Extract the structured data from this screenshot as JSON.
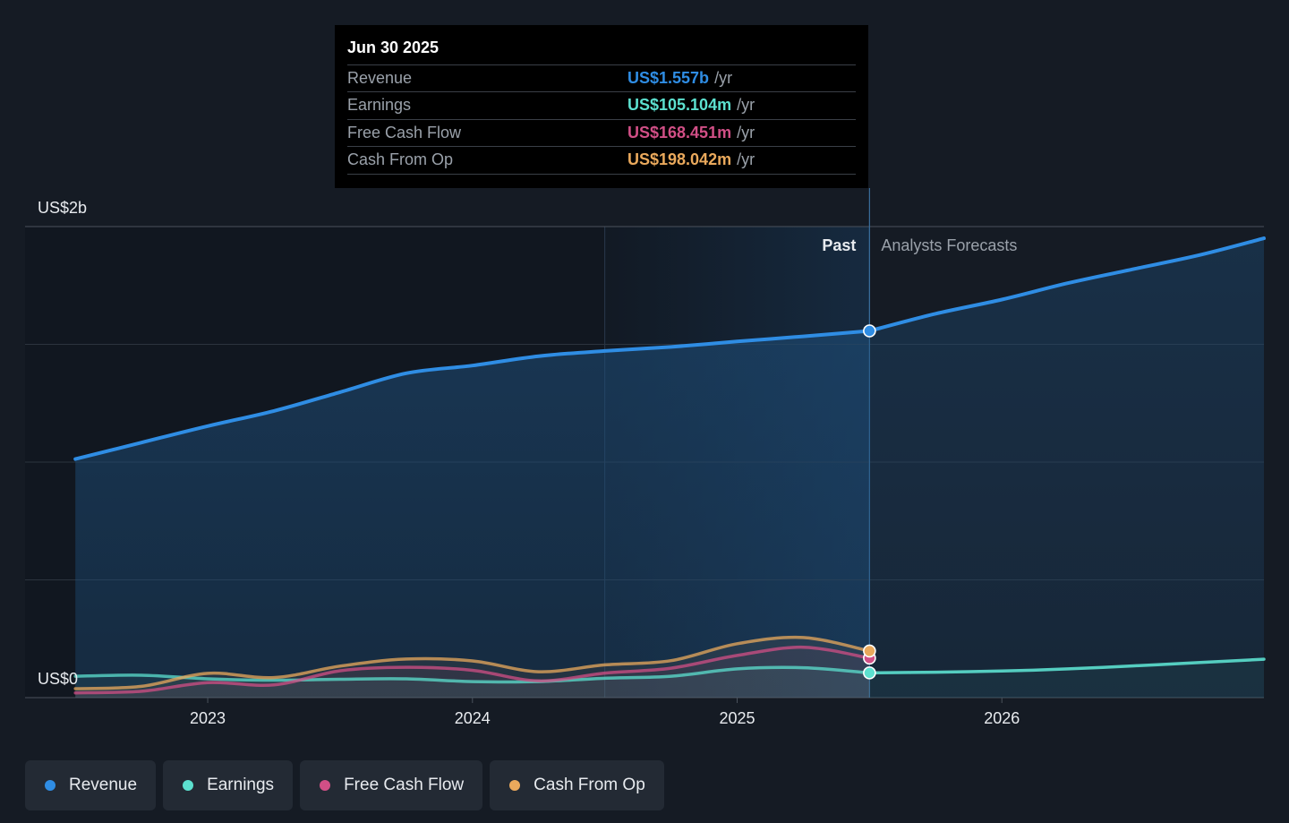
{
  "tooltip": {
    "date": "Jun 30 2025",
    "rows": [
      {
        "label": "Revenue",
        "value": "US$1.557b",
        "unit": "/yr",
        "color": "#2f8de4"
      },
      {
        "label": "Earnings",
        "value": "US$105.104m",
        "unit": "/yr",
        "color": "#5ce0cf"
      },
      {
        "label": "Free Cash Flow",
        "value": "US$168.451m",
        "unit": "/yr",
        "color": "#d14f86"
      },
      {
        "label": "Cash From Op",
        "value": "US$198.042m",
        "unit": "/yr",
        "color": "#eaa95c"
      }
    ]
  },
  "regions": {
    "past": "Past",
    "forecast": "Analysts Forecasts"
  },
  "chart_data": {
    "type": "line",
    "ylim": [
      0,
      2.0
    ],
    "y_unit": "US$ billions",
    "y_tick_labels": [
      {
        "value": 2.0,
        "label": "US$2b"
      },
      {
        "value": 0,
        "label": "US$0"
      }
    ],
    "y_gridlines": [
      0,
      0.5,
      1.0,
      1.5,
      2.0
    ],
    "x_range": [
      2022.31,
      2026.99
    ],
    "x_ticks": [
      {
        "value": 2023,
        "label": "2023"
      },
      {
        "value": 2024,
        "label": "2024"
      },
      {
        "value": 2025,
        "label": "2025"
      },
      {
        "value": 2026,
        "label": "2026"
      }
    ],
    "highlight_band": [
      2024.5,
      2025.5
    ],
    "past_end": 2025.5,
    "series": [
      {
        "name": "Revenue",
        "color": "#2f8de4",
        "x": [
          2022.5,
          2022.75,
          2023.0,
          2023.25,
          2023.5,
          2023.75,
          2024.0,
          2024.25,
          2024.5,
          2024.75,
          2025.0,
          2025.25,
          2025.5
        ],
        "y": [
          1.013,
          1.083,
          1.153,
          1.217,
          1.297,
          1.377,
          1.41,
          1.45,
          1.472,
          1.489,
          1.512,
          1.534,
          1.557
        ],
        "forecast": {
          "x": [
            2025.5,
            2025.75,
            2026.0,
            2026.25,
            2026.5,
            2026.75,
            2026.99
          ],
          "y": [
            1.557,
            1.63,
            1.69,
            1.76,
            1.82,
            1.88,
            1.95
          ]
        }
      },
      {
        "name": "Earnings",
        "color": "#5ce0cf",
        "x": [
          2022.5,
          2022.75,
          2023.0,
          2023.25,
          2023.5,
          2023.75,
          2024.0,
          2024.25,
          2024.5,
          2024.75,
          2025.0,
          2025.25,
          2025.5
        ],
        "y": [
          0.091,
          0.095,
          0.08,
          0.074,
          0.078,
          0.08,
          0.068,
          0.068,
          0.082,
          0.091,
          0.122,
          0.127,
          0.105
        ],
        "forecast": {
          "x": [
            2025.5,
            2025.75,
            2026.0,
            2026.25,
            2026.5,
            2026.75,
            2026.99
          ],
          "y": [
            0.105,
            0.108,
            0.113,
            0.122,
            0.135,
            0.149,
            0.163
          ]
        }
      },
      {
        "name": "Free Cash Flow",
        "color": "#d14f86",
        "x": [
          2022.5,
          2022.75,
          2023.0,
          2023.25,
          2023.5,
          2023.75,
          2024.0,
          2024.25,
          2024.5,
          2024.75,
          2025.0,
          2025.25,
          2025.5
        ],
        "y": [
          0.02,
          0.027,
          0.064,
          0.054,
          0.114,
          0.129,
          0.116,
          0.071,
          0.104,
          0.125,
          0.179,
          0.214,
          0.168
        ]
      },
      {
        "name": "Cash From Op",
        "color": "#eaa95c",
        "x": [
          2022.5,
          2022.75,
          2023.0,
          2023.25,
          2023.5,
          2023.75,
          2024.0,
          2024.25,
          2024.5,
          2024.75,
          2025.0,
          2025.25,
          2025.5
        ],
        "y": [
          0.038,
          0.048,
          0.103,
          0.085,
          0.134,
          0.164,
          0.156,
          0.11,
          0.139,
          0.157,
          0.229,
          0.255,
          0.198
        ]
      }
    ]
  },
  "legend": [
    {
      "label": "Revenue",
      "color": "#2f8de4"
    },
    {
      "label": "Earnings",
      "color": "#5ce0cf"
    },
    {
      "label": "Free Cash Flow",
      "color": "#d14f86"
    },
    {
      "label": "Cash From Op",
      "color": "#eaa95c"
    }
  ]
}
